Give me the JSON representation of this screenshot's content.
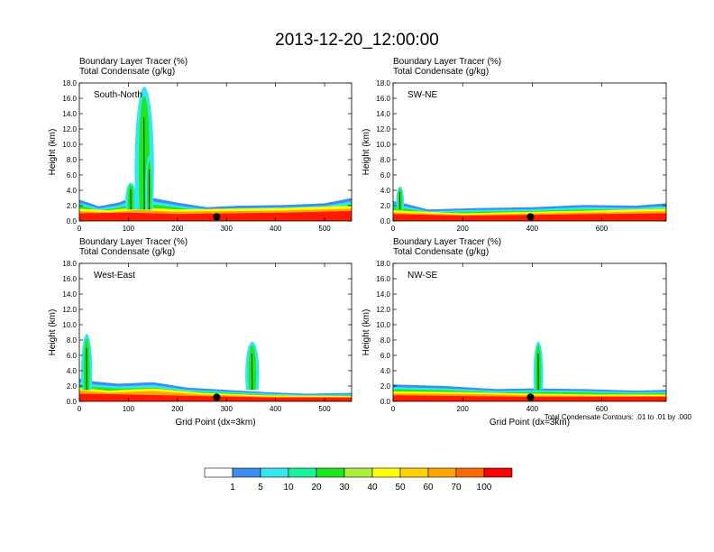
{
  "figure": {
    "title": "2013-12-20_12:00:00",
    "footnote": "Total Condensate Contours: .01 to .01 by .000"
  },
  "colors": {
    "colorbar": [
      "#ffffff",
      "#3a8ff0",
      "#33e6f0",
      "#1cf29a",
      "#1de81d",
      "#a9f23a",
      "#ffff00",
      "#ffd200",
      "#ffa500",
      "#ff6a00",
      "#ff0000"
    ],
    "surface_red": "#ff1a00",
    "contour": "#000000"
  },
  "colorbar": {
    "labels": [
      "1",
      "5",
      "10",
      "20",
      "30",
      "40",
      "50",
      "60",
      "70",
      "100"
    ]
  },
  "panels": [
    {
      "header1": "Boundary Layer Tracer   (%)",
      "header2": "Total Condensate   (g/kg)",
      "label": "South-North",
      "xticks": [
        "0",
        "100",
        "200",
        "300",
        "400",
        "500"
      ],
      "xtick_values": [
        0,
        100,
        200,
        300,
        400,
        500
      ],
      "xmax": 555,
      "yticks": [
        "0.0",
        "2.0",
        "4.0",
        "6.0",
        "8.0",
        "10.0",
        "12.0",
        "14.0",
        "16.0",
        "18.0"
      ],
      "ylabel": "Height (km)",
      "xlabel": "",
      "marker_x": 280,
      "pbl_blue": [
        [
          0,
          2.8
        ],
        [
          40,
          1.9
        ],
        [
          80,
          2.4
        ],
        [
          100,
          2.9
        ],
        [
          150,
          3.0
        ],
        [
          200,
          2.4
        ],
        [
          260,
          1.8
        ],
        [
          330,
          2.0
        ],
        [
          420,
          2.1
        ],
        [
          500,
          2.3
        ],
        [
          555,
          3.0
        ]
      ],
      "pbl_yellow": [
        [
          0,
          1.6
        ],
        [
          60,
          1.4
        ],
        [
          120,
          1.8
        ],
        [
          200,
          1.5
        ],
        [
          300,
          1.6
        ],
        [
          420,
          1.7
        ],
        [
          555,
          2.0
        ]
      ],
      "pbl_red": [
        [
          0,
          1.0
        ],
        [
          100,
          1.1
        ],
        [
          200,
          0.9
        ],
        [
          300,
          1.0
        ],
        [
          420,
          1.1
        ],
        [
          555,
          1.3
        ]
      ],
      "plumes": [
        {
          "x0": 95,
          "x1": 115,
          "top": 5.0
        },
        {
          "x0": 115,
          "x1": 150,
          "top": 17.5
        },
        {
          "x0": 135,
          "x1": 150,
          "top": 8.5
        }
      ]
    },
    {
      "header1": "Boundary Layer Tracer   (%)",
      "header2": "Total Condensate   (g/kg)",
      "label": "SW-NE",
      "xticks": [
        "0",
        "200",
        "400",
        "600"
      ],
      "xtick_values": [
        0,
        200,
        400,
        600
      ],
      "xmax": 785,
      "yticks": [
        "0.0",
        "2.0",
        "4.0",
        "6.0",
        "8.0",
        "10.0",
        "12.0",
        "14.0",
        "16.0",
        "18.0"
      ],
      "ylabel": "Height (km)",
      "xlabel": "",
      "marker_x": 395,
      "pbl_blue": [
        [
          0,
          2.6
        ],
        [
          40,
          2.2
        ],
        [
          100,
          1.5
        ],
        [
          250,
          1.7
        ],
        [
          400,
          1.8
        ],
        [
          550,
          2.1
        ],
        [
          700,
          2.0
        ],
        [
          785,
          2.3
        ]
      ],
      "pbl_yellow": [
        [
          0,
          1.4
        ],
        [
          200,
          1.0
        ],
        [
          400,
          1.2
        ],
        [
          600,
          1.4
        ],
        [
          785,
          1.6
        ]
      ],
      "pbl_red": [
        [
          0,
          0.9
        ],
        [
          200,
          0.7
        ],
        [
          400,
          0.8
        ],
        [
          600,
          0.9
        ],
        [
          785,
          1.0
        ]
      ],
      "plumes": [
        {
          "x0": 10,
          "x1": 30,
          "top": 4.5
        }
      ]
    },
    {
      "header1": "Boundary Layer Tracer   (%)",
      "header2": "Total Condensate   (g/kg)",
      "label": "West-East",
      "xticks": [
        "0",
        "100",
        "200",
        "300",
        "400",
        "500"
      ],
      "xtick_values": [
        0,
        100,
        200,
        300,
        400,
        500
      ],
      "xmax": 555,
      "yticks": [
        "0.0",
        "2.0",
        "4.0",
        "6.0",
        "8.0",
        "10.0",
        "12.0",
        "14.0",
        "16.0",
        "18.0"
      ],
      "ylabel": "Height (km)",
      "xlabel": "Grid Point (dx=3km)",
      "marker_x": 280,
      "pbl_blue": [
        [
          0,
          3.0
        ],
        [
          30,
          2.6
        ],
        [
          80,
          2.3
        ],
        [
          150,
          2.5
        ],
        [
          220,
          1.8
        ],
        [
          300,
          1.5
        ],
        [
          380,
          1.2
        ],
        [
          460,
          1.0
        ],
        [
          555,
          1.1
        ]
      ],
      "pbl_yellow": [
        [
          0,
          1.8
        ],
        [
          60,
          1.4
        ],
        [
          150,
          1.7
        ],
        [
          250,
          1.1
        ],
        [
          380,
          0.8
        ],
        [
          555,
          0.7
        ]
      ],
      "pbl_red": [
        [
          0,
          1.0
        ],
        [
          100,
          0.9
        ],
        [
          250,
          0.7
        ],
        [
          400,
          0.5
        ],
        [
          555,
          0.5
        ]
      ],
      "plumes": [
        {
          "x0": 5,
          "x1": 25,
          "top": 8.8
        },
        {
          "x0": 340,
          "x1": 365,
          "top": 7.8
        }
      ]
    },
    {
      "header1": "Boundary Layer Tracer   (%)",
      "header2": "Total Condensate   (g/kg)",
      "label": "NW-SE",
      "xticks": [
        "0",
        "200",
        "400",
        "600"
      ],
      "xtick_values": [
        0,
        200,
        400,
        600
      ],
      "xmax": 785,
      "yticks": [
        "0.0",
        "2.0",
        "4.0",
        "6.0",
        "8.0",
        "10.0",
        "12.0",
        "14.0",
        "16.0",
        "18.0"
      ],
      "ylabel": "Height (km)",
      "xlabel": "Grid Point (dx=3km)",
      "marker_x": 395,
      "pbl_blue": [
        [
          0,
          2.2
        ],
        [
          150,
          2.0
        ],
        [
          300,
          1.6
        ],
        [
          400,
          1.7
        ],
        [
          550,
          1.6
        ],
        [
          700,
          1.4
        ],
        [
          785,
          1.5
        ]
      ],
      "pbl_yellow": [
        [
          0,
          1.3
        ],
        [
          200,
          1.2
        ],
        [
          400,
          1.0
        ],
        [
          600,
          0.9
        ],
        [
          785,
          0.9
        ]
      ],
      "pbl_red": [
        [
          0,
          0.8
        ],
        [
          200,
          0.7
        ],
        [
          400,
          0.6
        ],
        [
          600,
          0.6
        ],
        [
          785,
          0.6
        ]
      ],
      "plumes": [
        {
          "x0": 405,
          "x1": 430,
          "top": 7.8
        }
      ]
    }
  ]
}
